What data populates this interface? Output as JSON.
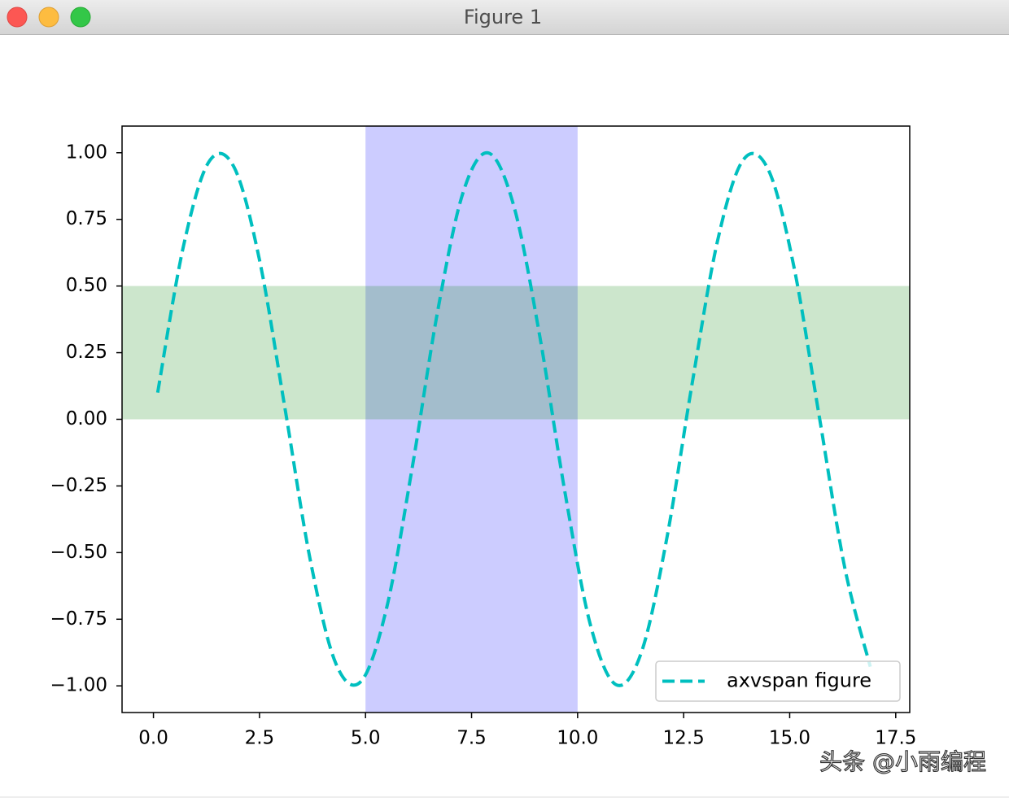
{
  "window": {
    "title": "Figure 1",
    "watermark": "头条 @小雨编程"
  },
  "chart_data": {
    "type": "line",
    "x": [
      0.1,
      0.7,
      1.3,
      1.9,
      2.5,
      3.1,
      3.7,
      4.3,
      4.9,
      5.5,
      6.1,
      6.7,
      7.3,
      7.9,
      8.5,
      9.1,
      9.7,
      10.3,
      10.9,
      11.5,
      12.1,
      12.7,
      13.3,
      13.9,
      14.5,
      15.1,
      15.7,
      16.3,
      16.9
    ],
    "series": [
      {
        "name": "axvspan figure",
        "color": "#00bfbf",
        "values": [
          0.1,
          0.644,
          0.964,
          0.946,
          0.598,
          0.042,
          -0.53,
          -0.916,
          -0.982,
          -0.706,
          -0.182,
          0.405,
          0.851,
          0.999,
          0.798,
          0.319,
          -0.272,
          -0.77,
          -0.995,
          -0.876,
          -0.449,
          0.134,
          0.67,
          0.972,
          0.935,
          0.572,
          0.008,
          -0.558,
          -0.928
        ]
      }
    ],
    "vspan": {
      "range": [
        5,
        10
      ],
      "color": "#ccccff"
    },
    "hspan": {
      "range": [
        0,
        0.5
      ],
      "color": "#008000",
      "opacity": 0.2
    },
    "xlim": [
      -0.74,
      17.83
    ],
    "ylim": [
      -1.1,
      1.1
    ],
    "xticks": [
      {
        "value": 0,
        "label": "0.0"
      },
      2.5,
      {
        "value": 5,
        "label": "5.0"
      },
      7.5,
      {
        "value": 10,
        "label": "10.0"
      },
      12.5,
      {
        "value": 15,
        "label": "15.0"
      },
      17.5
    ],
    "yticks": [
      {
        "value": -1,
        "label": "−1.00"
      },
      {
        "value": -0.75,
        "label": "−0.75"
      },
      {
        "value": -0.5,
        "label": "−0.50"
      },
      {
        "value": -0.25,
        "label": "−0.25"
      },
      {
        "value": 0,
        "label": "0.00"
      },
      {
        "value": 0.25,
        "label": "0.25"
      },
      {
        "value": 0.5,
        "label": "0.50"
      },
      {
        "value": 0.75,
        "label": "0.75"
      },
      {
        "value": 1,
        "label": "1.00"
      }
    ],
    "legend": "lower right"
  }
}
